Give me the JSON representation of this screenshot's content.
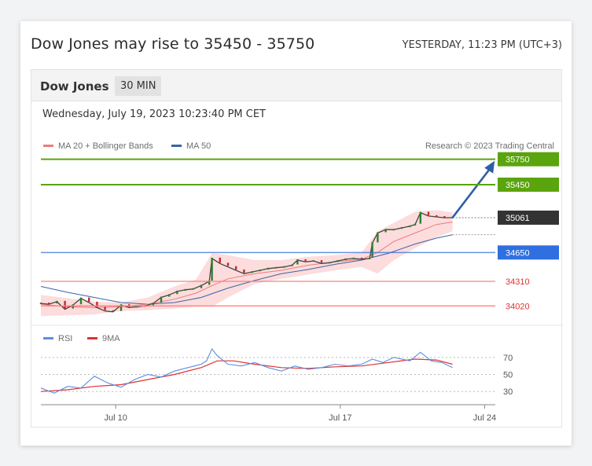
{
  "headline": "Dow Jones may rise to 35450 - 35750",
  "timestamp": "YESTERDAY, 11:23 PM (UTC+3)",
  "instrument": "Dow Jones",
  "timeframe": "30 MIN",
  "chart_datetime": "Wednesday, July 19, 2023 10:23:40 PM CET",
  "legend": {
    "ma20": "MA 20 + Bollinger Bands",
    "ma50": "MA 50",
    "credit": "Research © 2023 Trading Central"
  },
  "colors": {
    "target": "#5aa40e",
    "pivot": "#2f6fe0",
    "support": "#ff8080",
    "last": "#333333",
    "arrow": "#2f5da8",
    "ma20": "#f07a7a",
    "ma50": "#3a63a8",
    "band": "#fbd6d6",
    "rsi": "#5b8fe0",
    "rsi_ma": "#e03131"
  },
  "chart_data": [
    {
      "type": "line",
      "title": "",
      "ylim": [
        33930,
        35830
      ],
      "levels": [
        {
          "label": "35750",
          "value": 35750,
          "kind": "target"
        },
        {
          "label": "35450",
          "value": 35450,
          "kind": "target"
        },
        {
          "label": "35061",
          "value": 35061,
          "kind": "last"
        },
        {
          "label": "34650",
          "value": 34650,
          "kind": "pivot"
        },
        {
          "label": "34310",
          "value": 34310,
          "kind": "support"
        },
        {
          "label": "34020",
          "value": 34020,
          "kind": "support"
        }
      ],
      "x_ticks": [
        "Jul 10",
        "Jul 17",
        "Jul 24"
      ],
      "price": [
        [
          0,
          34050
        ],
        [
          3,
          34040
        ],
        [
          6,
          34070
        ],
        [
          9,
          33980
        ],
        [
          12,
          34030
        ],
        [
          15,
          34110
        ],
        [
          18,
          34060
        ],
        [
          21,
          34000
        ],
        [
          24,
          33960
        ],
        [
          27,
          33950
        ],
        [
          30,
          34030
        ],
        [
          33,
          34000
        ],
        [
          36,
          34010
        ],
        [
          39,
          34020
        ],
        [
          42,
          34050
        ],
        [
          45,
          34120
        ],
        [
          48,
          34150
        ],
        [
          51,
          34190
        ],
        [
          54,
          34210
        ],
        [
          57,
          34220
        ],
        [
          60,
          34260
        ],
        [
          63,
          34310
        ],
        [
          64,
          34580
        ],
        [
          67,
          34520
        ],
        [
          70,
          34480
        ],
        [
          73,
          34440
        ],
        [
          76,
          34400
        ],
        [
          79,
          34420
        ],
        [
          82,
          34440
        ],
        [
          85,
          34460
        ],
        [
          88,
          34470
        ],
        [
          91,
          34480
        ],
        [
          94,
          34500
        ],
        [
          96,
          34560
        ],
        [
          99,
          34540
        ],
        [
          102,
          34550
        ],
        [
          105,
          34520
        ],
        [
          108,
          34530
        ],
        [
          111,
          34550
        ],
        [
          114,
          34570
        ],
        [
          117,
          34580
        ],
        [
          120,
          34570
        ],
        [
          123,
          34580
        ],
        [
          124,
          34760
        ],
        [
          126,
          34880
        ],
        [
          129,
          34920
        ],
        [
          132,
          34920
        ],
        [
          135,
          34940
        ],
        [
          138,
          34960
        ],
        [
          140,
          34980
        ],
        [
          142,
          35120
        ],
        [
          145,
          35080
        ],
        [
          148,
          35070
        ],
        [
          151,
          35060
        ],
        [
          154,
          35061
        ]
      ],
      "ma20": [
        [
          0,
          34040
        ],
        [
          10,
          34010
        ],
        [
          20,
          34000
        ],
        [
          30,
          34010
        ],
        [
          40,
          34040
        ],
        [
          50,
          34100
        ],
        [
          58,
          34170
        ],
        [
          64,
          34260
        ],
        [
          70,
          34340
        ],
        [
          80,
          34400
        ],
        [
          90,
          34440
        ],
        [
          100,
          34500
        ],
        [
          110,
          34540
        ],
        [
          120,
          34570
        ],
        [
          126,
          34650
        ],
        [
          132,
          34780
        ],
        [
          140,
          34880
        ],
        [
          148,
          34980
        ],
        [
          154,
          35010
        ]
      ],
      "ma50": [
        [
          0,
          34250
        ],
        [
          10,
          34180
        ],
        [
          20,
          34120
        ],
        [
          30,
          34060
        ],
        [
          40,
          34040
        ],
        [
          50,
          34060
        ],
        [
          60,
          34120
        ],
        [
          70,
          34230
        ],
        [
          80,
          34320
        ],
        [
          90,
          34400
        ],
        [
          100,
          34450
        ],
        [
          110,
          34510
        ],
        [
          120,
          34560
        ],
        [
          130,
          34640
        ],
        [
          140,
          34750
        ],
        [
          148,
          34820
        ],
        [
          154,
          34860
        ]
      ],
      "band_upper": [
        [
          0,
          34150
        ],
        [
          10,
          34110
        ],
        [
          20,
          34070
        ],
        [
          30,
          34060
        ],
        [
          40,
          34120
        ],
        [
          50,
          34250
        ],
        [
          58,
          34330
        ],
        [
          64,
          34640
        ],
        [
          70,
          34620
        ],
        [
          80,
          34560
        ],
        [
          90,
          34560
        ],
        [
          100,
          34600
        ],
        [
          110,
          34620
        ],
        [
          120,
          34650
        ],
        [
          126,
          34900
        ],
        [
          132,
          35000
        ],
        [
          140,
          35130
        ],
        [
          148,
          35150
        ],
        [
          154,
          35120
        ]
      ],
      "band_lower": [
        [
          0,
          33900
        ],
        [
          10,
          33910
        ],
        [
          20,
          33920
        ],
        [
          30,
          33960
        ],
        [
          40,
          33970
        ],
        [
          50,
          33990
        ],
        [
          58,
          34010
        ],
        [
          64,
          34010
        ],
        [
          70,
          34120
        ],
        [
          80,
          34280
        ],
        [
          90,
          34340
        ],
        [
          100,
          34390
        ],
        [
          110,
          34440
        ],
        [
          120,
          34480
        ],
        [
          126,
          34400
        ],
        [
          132,
          34560
        ],
        [
          140,
          34700
        ],
        [
          148,
          34830
        ],
        [
          154,
          34900
        ]
      ],
      "projection": {
        "from": [
          154,
          35061
        ],
        "to": [
          168,
          35750
        ]
      }
    },
    {
      "type": "line",
      "title": "",
      "legend": [
        "RSI",
        "9MA"
      ],
      "ylim": [
        20,
        80
      ],
      "y_ticks": [
        70,
        50,
        30
      ],
      "rsi": [
        [
          0,
          34
        ],
        [
          5,
          28
        ],
        [
          10,
          36
        ],
        [
          15,
          34
        ],
        [
          20,
          48
        ],
        [
          25,
          40
        ],
        [
          30,
          35
        ],
        [
          35,
          44
        ],
        [
          40,
          50
        ],
        [
          45,
          47
        ],
        [
          50,
          54
        ],
        [
          55,
          58
        ],
        [
          60,
          62
        ],
        [
          62,
          66
        ],
        [
          64,
          80
        ],
        [
          66,
          72
        ],
        [
          70,
          62
        ],
        [
          75,
          60
        ],
        [
          80,
          64
        ],
        [
          85,
          58
        ],
        [
          90,
          54
        ],
        [
          95,
          60
        ],
        [
          100,
          56
        ],
        [
          105,
          58
        ],
        [
          110,
          62
        ],
        [
          115,
          60
        ],
        [
          120,
          62
        ],
        [
          124,
          68
        ],
        [
          128,
          64
        ],
        [
          132,
          70
        ],
        [
          138,
          66
        ],
        [
          142,
          76
        ],
        [
          146,
          66
        ],
        [
          150,
          64
        ],
        [
          154,
          58
        ]
      ],
      "rsi_ma": [
        [
          0,
          30
        ],
        [
          10,
          32
        ],
        [
          20,
          36
        ],
        [
          30,
          38
        ],
        [
          40,
          44
        ],
        [
          50,
          50
        ],
        [
          60,
          58
        ],
        [
          66,
          66
        ],
        [
          72,
          66
        ],
        [
          80,
          62
        ],
        [
          90,
          58
        ],
        [
          100,
          57
        ],
        [
          110,
          59
        ],
        [
          120,
          60
        ],
        [
          130,
          64
        ],
        [
          140,
          68
        ],
        [
          148,
          67
        ],
        [
          154,
          62
        ]
      ]
    }
  ]
}
